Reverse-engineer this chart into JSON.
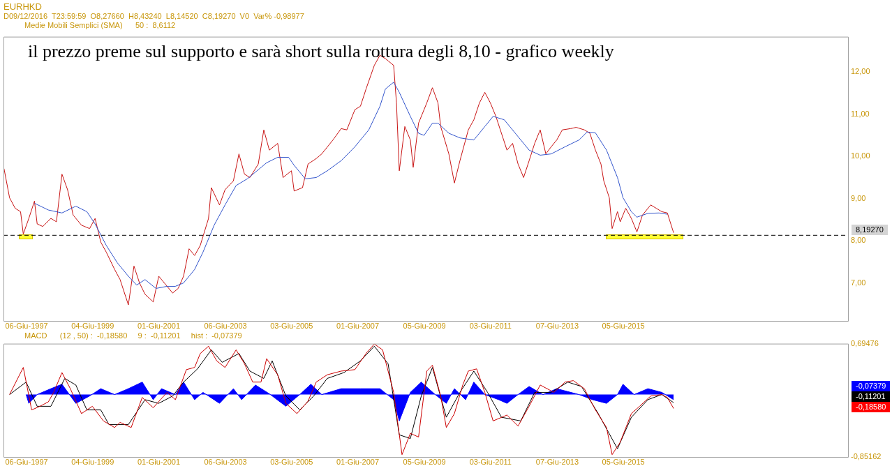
{
  "chart_data": [
    {
      "type": "line",
      "title": "EURHKD",
      "subtitle": "D09/12/2016  T23:59:59  O8,27660  H8,43240  L8,14520  C8,19270  V0  Var% -0,98977",
      "annotations": [
        "il prezzo preme sul supporto e sarà short sulla rottura degli 8,10 - grafico weekly",
        "Medie Mobili Semplici (SMA)      50 :  8,6112",
        "8,19270"
      ],
      "xlim": [
        "1996-09-25",
        "2022-03-14"
      ],
      "ylim": [
        6.1,
        12.84
      ],
      "xticks": [
        {
          "value": "1997-06-06",
          "label": "06-Giu-1997"
        },
        {
          "value": "1999-06-04",
          "label": "04-Giu-1999"
        },
        {
          "value": "2001-06-01",
          "label": "01-Giu-2001"
        },
        {
          "value": "2003-06-06",
          "label": "06-Giu-2003"
        },
        {
          "value": "2005-06-03",
          "label": "03-Giu-2005"
        },
        {
          "value": "2007-06-01",
          "label": "01-Giu-2007"
        },
        {
          "value": "2009-06-05",
          "label": "05-Giu-2009"
        },
        {
          "value": "2011-06-03",
          "label": "03-Giu-2011"
        },
        {
          "value": "2013-06-07",
          "label": "07-Giu-2013"
        },
        {
          "value": "2015-06-05",
          "label": "05-Giu-2015"
        }
      ],
      "yticks": [
        {
          "value": 7,
          "label": "7,00"
        },
        {
          "value": 8,
          "label": "8,00"
        },
        {
          "value": 9,
          "label": "9,00"
        },
        {
          "value": 10,
          "label": "10,00"
        },
        {
          "value": 11,
          "label": "11,00"
        },
        {
          "value": 12,
          "label": "12,00"
        }
      ],
      "ref_lines": [
        {
          "axis": "y",
          "value": 8.13,
          "color": "#000000",
          "line_style": "dashed"
        }
      ],
      "marker": "none",
      "series": [
        {
          "color": "#c81414",
          "x": [
            "1996-10",
            "1996-12",
            "1997-02",
            "1997-04",
            "1997-05",
            "1997-07",
            "1997-09",
            "1997-10",
            "1997-12",
            "1998-03",
            "1998-05",
            "1998-07",
            "1998-09",
            "1998-11",
            "1999-02",
            "1999-05",
            "1999-07",
            "1999-09",
            "1999-11",
            "2000-02",
            "2000-04",
            "2000-06",
            "2000-07",
            "2000-09",
            "2000-11",
            "2001-01",
            "2001-04",
            "2001-06",
            "2001-09",
            "2001-11",
            "2002-01",
            "2002-03",
            "2002-05",
            "2002-07",
            "2002-09",
            "2002-12",
            "2003-01",
            "2003-04",
            "2003-06",
            "2003-09",
            "2003-11",
            "2004-01",
            "2004-03",
            "2004-06",
            "2004-08",
            "2004-10",
            "2005-01",
            "2005-03",
            "2005-06",
            "2005-07",
            "2005-10",
            "2005-12",
            "2006-03",
            "2006-05",
            "2006-09",
            "2006-12",
            "2007-02",
            "2007-05",
            "2007-07",
            "2007-09",
            "2007-12",
            "2008-02",
            "2008-04",
            "2008-07",
            "2008-08",
            "2008-09",
            "2008-11",
            "2009-01",
            "2009-02",
            "2009-04",
            "2009-07",
            "2009-09",
            "2009-11",
            "2009-12",
            "2010-03",
            "2010-05",
            "2010-07",
            "2010-10",
            "2010-12",
            "2011-02",
            "2011-04",
            "2011-06",
            "2011-08",
            "2011-10",
            "2011-12",
            "2012-02",
            "2012-04",
            "2012-06",
            "2012-08",
            "2012-10",
            "2012-12",
            "2013-02",
            "2013-04",
            "2013-06",
            "2013-08",
            "2013-11",
            "2014-01",
            "2014-04",
            "2014-06",
            "2014-08",
            "2014-10",
            "2014-11",
            "2015-01",
            "2015-02",
            "2015-04",
            "2015-05",
            "2015-07",
            "2015-09",
            "2015-11",
            "2016-01",
            "2016-04",
            "2016-06",
            "2016-08",
            "2016-10",
            "2016-12-09"
          ],
          "values": [
            9.71,
            9.02,
            8.77,
            8.69,
            8.16,
            8.53,
            8.94,
            8.4,
            8.34,
            8.53,
            8.45,
            9.58,
            9.21,
            8.61,
            8.37,
            8.29,
            8.53,
            7.97,
            7.73,
            7.32,
            7.08,
            6.68,
            6.48,
            7.4,
            7.0,
            6.73,
            6.55,
            7.16,
            6.92,
            6.76,
            6.87,
            7.16,
            7.81,
            7.65,
            7.89,
            8.53,
            9.26,
            8.85,
            9.21,
            9.42,
            10.06,
            9.58,
            9.5,
            9.82,
            10.63,
            10.15,
            10.31,
            9.5,
            9.66,
            9.18,
            9.26,
            9.82,
            9.95,
            10.06,
            10.39,
            10.66,
            10.63,
            11.11,
            11.19,
            11.6,
            12.16,
            12.4,
            12.32,
            12.16,
            11.27,
            9.66,
            10.71,
            10.39,
            9.74,
            10.79,
            11.27,
            11.63,
            11.27,
            10.71,
            10.06,
            9.37,
            9.9,
            10.63,
            10.87,
            11.27,
            11.52,
            11.27,
            10.95,
            10.55,
            10.15,
            10.31,
            9.82,
            9.5,
            9.9,
            10.31,
            10.63,
            10.06,
            10.23,
            10.39,
            10.63,
            10.66,
            10.69,
            10.63,
            10.55,
            10.15,
            9.82,
            9.42,
            9.02,
            8.29,
            8.69,
            8.45,
            8.77,
            8.53,
            8.21,
            8.61,
            8.85,
            8.77,
            8.69,
            8.66,
            8.19
          ]
        },
        {
          "color": "#3355cc",
          "x": [
            "1997-09",
            "1998-02",
            "1998-07",
            "1998-12",
            "1999-04",
            "1999-07",
            "1999-11",
            "2000-03",
            "2000-07",
            "2000-10",
            "2001-01",
            "2001-05",
            "2001-09",
            "2001-12",
            "2002-03",
            "2002-07",
            "2002-10",
            "2003-02",
            "2003-06",
            "2003-10",
            "2004-02",
            "2004-05",
            "2004-09",
            "2005-01",
            "2005-05",
            "2005-07",
            "2005-11",
            "2006-03",
            "2006-07",
            "2006-12",
            "2007-05",
            "2007-10",
            "2008-02",
            "2008-04",
            "2008-07",
            "2008-09",
            "2009-01",
            "2009-04",
            "2009-06",
            "2009-09",
            "2009-11",
            "2010-03",
            "2010-07",
            "2010-12",
            "2011-04",
            "2011-07",
            "2011-11",
            "2012-04",
            "2012-08",
            "2012-12",
            "2013-04",
            "2013-09",
            "2014-02",
            "2014-05",
            "2014-08",
            "2014-12",
            "2015-04",
            "2015-06",
            "2015-09",
            "2015-11",
            "2016-03",
            "2016-07",
            "2016-10"
          ],
          "values": [
            8.89,
            8.73,
            8.66,
            8.82,
            8.69,
            8.4,
            7.89,
            7.48,
            7.16,
            6.95,
            7.08,
            6.87,
            6.92,
            6.92,
            7.0,
            7.32,
            7.73,
            8.37,
            8.85,
            9.31,
            9.47,
            9.63,
            9.85,
            9.98,
            9.98,
            9.79,
            9.47,
            9.5,
            9.66,
            9.9,
            10.23,
            10.63,
            11.19,
            11.6,
            11.76,
            11.52,
            10.95,
            10.55,
            10.5,
            10.79,
            10.79,
            10.55,
            10.44,
            10.39,
            10.71,
            10.95,
            10.87,
            10.47,
            10.15,
            10.03,
            10.06,
            10.23,
            10.39,
            10.58,
            10.56,
            10.15,
            9.5,
            9.02,
            8.69,
            8.56,
            8.65,
            8.66,
            8.63
          ]
        }
      ]
    },
    {
      "type": "line",
      "annotations": [
        "MACD      (12 , 50) :  -0,18580     9 :  -0,11201     hist :  -0,07379",
        "-0,07379",
        "-0,11201",
        "-0,18580"
      ],
      "xlim": [
        "1996-09-25",
        "2022-03-14"
      ],
      "ylim": [
        -0.85162,
        0.69476
      ],
      "xticks": [
        {
          "value": "1997-06-06",
          "label": "06-Giu-1997"
        },
        {
          "value": "1999-06-04",
          "label": "04-Giu-1999"
        },
        {
          "value": "2001-06-01",
          "label": "01-Giu-2001"
        },
        {
          "value": "2003-06-06",
          "label": "06-Giu-2003"
        },
        {
          "value": "2005-06-03",
          "label": "03-Giu-2005"
        },
        {
          "value": "2007-06-01",
          "label": "01-Giu-2007"
        },
        {
          "value": "2009-06-05",
          "label": "05-Giu-2009"
        },
        {
          "value": "2011-06-03",
          "label": "03-Giu-2011"
        },
        {
          "value": "2013-06-07",
          "label": "07-Giu-2013"
        },
        {
          "value": "2015-06-05",
          "label": "05-Giu-2015"
        }
      ],
      "yticks": [
        {
          "value": -0.85162,
          "label": "-0,85162"
        },
        {
          "value": 0.69476,
          "label": "0,69476"
        }
      ],
      "marker": "none",
      "series": [
        {
          "type": "area",
          "color": "#0000ff",
          "x": [
            "1997-06",
            "1997-07",
            "1997-10",
            "1998-03",
            "1998-07",
            "1998-12",
            "1999-05",
            "1999-09",
            "2000-02",
            "2000-07",
            "2000-12",
            "2001-04",
            "2001-07",
            "2001-12",
            "2002-03",
            "2002-07",
            "2002-10",
            "2003-04",
            "2003-09",
            "2003-12",
            "2004-05",
            "2004-10",
            "2005-04",
            "2005-09",
            "2006-01",
            "2006-05",
            "2006-12",
            "2007-07",
            "2008-02",
            "2008-07",
            "2008-09",
            "2009-01",
            "2009-05",
            "2009-10",
            "2010-02",
            "2010-05",
            "2010-09",
            "2010-12",
            "2011-04",
            "2011-09",
            "2011-12",
            "2012-04",
            "2012-08",
            "2013-01",
            "2013-06",
            "2014-02",
            "2014-07",
            "2014-12",
            "2015-04",
            "2015-06",
            "2015-10",
            "2016-03",
            "2016-08",
            "2016-12-09"
          ],
          "values": [
            0,
            -0.12,
            0,
            0.08,
            0.14,
            -0.12,
            -0.02,
            0.08,
            0,
            0.08,
            0.17,
            -0.07,
            0.08,
            0,
            0.17,
            -0.07,
            0.03,
            -0.12,
            0.08,
            -0.07,
            0.13,
            0.01,
            -0.16,
            0,
            0.14,
            0,
            0.08,
            0.08,
            0.08,
            -0.07,
            -0.36,
            0.03,
            0.17,
            0,
            -0.12,
            0.08,
            -0.07,
            0.17,
            0,
            -0.07,
            -0.12,
            0,
            0.11,
            0,
            0.08,
            0,
            -0.07,
            -0.12,
            0,
            0.14,
            0,
            0.08,
            0.03,
            -0.07
          ]
        },
        {
          "color": "#000000",
          "x": [
            "1996-12",
            "1997-06",
            "1997-10",
            "1998-03",
            "1998-08",
            "1998-12",
            "1999-04",
            "1999-09",
            "1999-12",
            "2000-07",
            "2001-01",
            "2001-06",
            "2001-11",
            "2002-03",
            "2002-08",
            "2003-01",
            "2003-05",
            "2003-11",
            "2004-03",
            "2004-08",
            "2004-11",
            "2005-04",
            "2005-09",
            "2006-02",
            "2006-07",
            "2007-01",
            "2007-07",
            "2007-12",
            "2008-05",
            "2008-09",
            "2009-01",
            "2009-05",
            "2009-09",
            "2010-02",
            "2010-07",
            "2010-12",
            "2011-05",
            "2011-10",
            "2012-05",
            "2012-10",
            "2013-04",
            "2013-10",
            "2014-03",
            "2014-09",
            "2015-04",
            "2015-09",
            "2016-03",
            "2016-08",
            "2016-12-09"
          ],
          "values": [
            0,
            0.17,
            -0.16,
            -0.16,
            0.22,
            0.13,
            -0.21,
            -0.21,
            -0.41,
            -0.41,
            -0.07,
            -0.12,
            -0.02,
            0.17,
            0.35,
            0.61,
            0.44,
            0.56,
            0.32,
            0.22,
            0.46,
            -0.02,
            -0.21,
            -0.02,
            0.22,
            0.3,
            0.46,
            0.66,
            0.42,
            -0.55,
            -0.6,
            -0.02,
            0.37,
            -0.31,
            0.03,
            0.32,
            0.03,
            -0.31,
            -0.36,
            0.03,
            0.03,
            0.17,
            0.11,
            -0.26,
            -0.74,
            -0.31,
            -0.07,
            0,
            -0.11
          ]
        },
        {
          "color": "#cc0000",
          "x": [
            "1996-12",
            "1997-05",
            "1997-08",
            "1997-11",
            "1998-02",
            "1998-04",
            "1998-07",
            "1998-10",
            "1999-02",
            "1999-06",
            "1999-10",
            "2000-02",
            "2000-04",
            "2000-08",
            "2000-12",
            "2001-04",
            "2001-09",
            "2001-12",
            "2002-04",
            "2002-07",
            "2002-09",
            "2002-12",
            "2003-03",
            "2003-06",
            "2003-10",
            "2004-01",
            "2004-04",
            "2004-07",
            "2004-09",
            "2005-01",
            "2005-04",
            "2005-08",
            "2005-12",
            "2006-03",
            "2006-07",
            "2006-12",
            "2007-05",
            "2007-09",
            "2007-12",
            "2008-03",
            "2008-07",
            "2008-10",
            "2009-01",
            "2009-04",
            "2009-07",
            "2009-09",
            "2009-12",
            "2010-02",
            "2010-05",
            "2010-08",
            "2010-10",
            "2011-01",
            "2011-04",
            "2011-07",
            "2011-12",
            "2012-04",
            "2012-08",
            "2012-12",
            "2013-05",
            "2013-09",
            "2013-12",
            "2014-04",
            "2014-08",
            "2014-12",
            "2015-02",
            "2015-05",
            "2015-09",
            "2015-12",
            "2016-04",
            "2016-08",
            "2016-10",
            "2016-12-09"
          ],
          "values": [
            0,
            0.37,
            -0.21,
            -0.16,
            -0.1,
            0.03,
            0.3,
            0.08,
            -0.26,
            -0.16,
            -0.36,
            -0.45,
            -0.38,
            -0.45,
            -0.04,
            -0.18,
            0.03,
            -0.07,
            0.34,
            0.37,
            0.56,
            0.66,
            0.46,
            0.37,
            0.61,
            0.42,
            0.17,
            0.17,
            0.49,
            0.27,
            -0.12,
            -0.26,
            -0.09,
            0.17,
            0.27,
            0.32,
            0.34,
            0.56,
            0.69,
            0.61,
            0.03,
            -0.82,
            -0.53,
            -0.58,
            0.32,
            0.4,
            -0.02,
            -0.45,
            -0.26,
            0.13,
            0.32,
            0.35,
            0.03,
            -0.36,
            -0.28,
            -0.43,
            -0.16,
            0.13,
            0.03,
            0.17,
            0.19,
            0.08,
            -0.21,
            -0.45,
            -0.82,
            -0.65,
            -0.26,
            -0.16,
            -0.02,
            0,
            -0.04,
            -0.19
          ]
        }
      ]
    }
  ]
}
